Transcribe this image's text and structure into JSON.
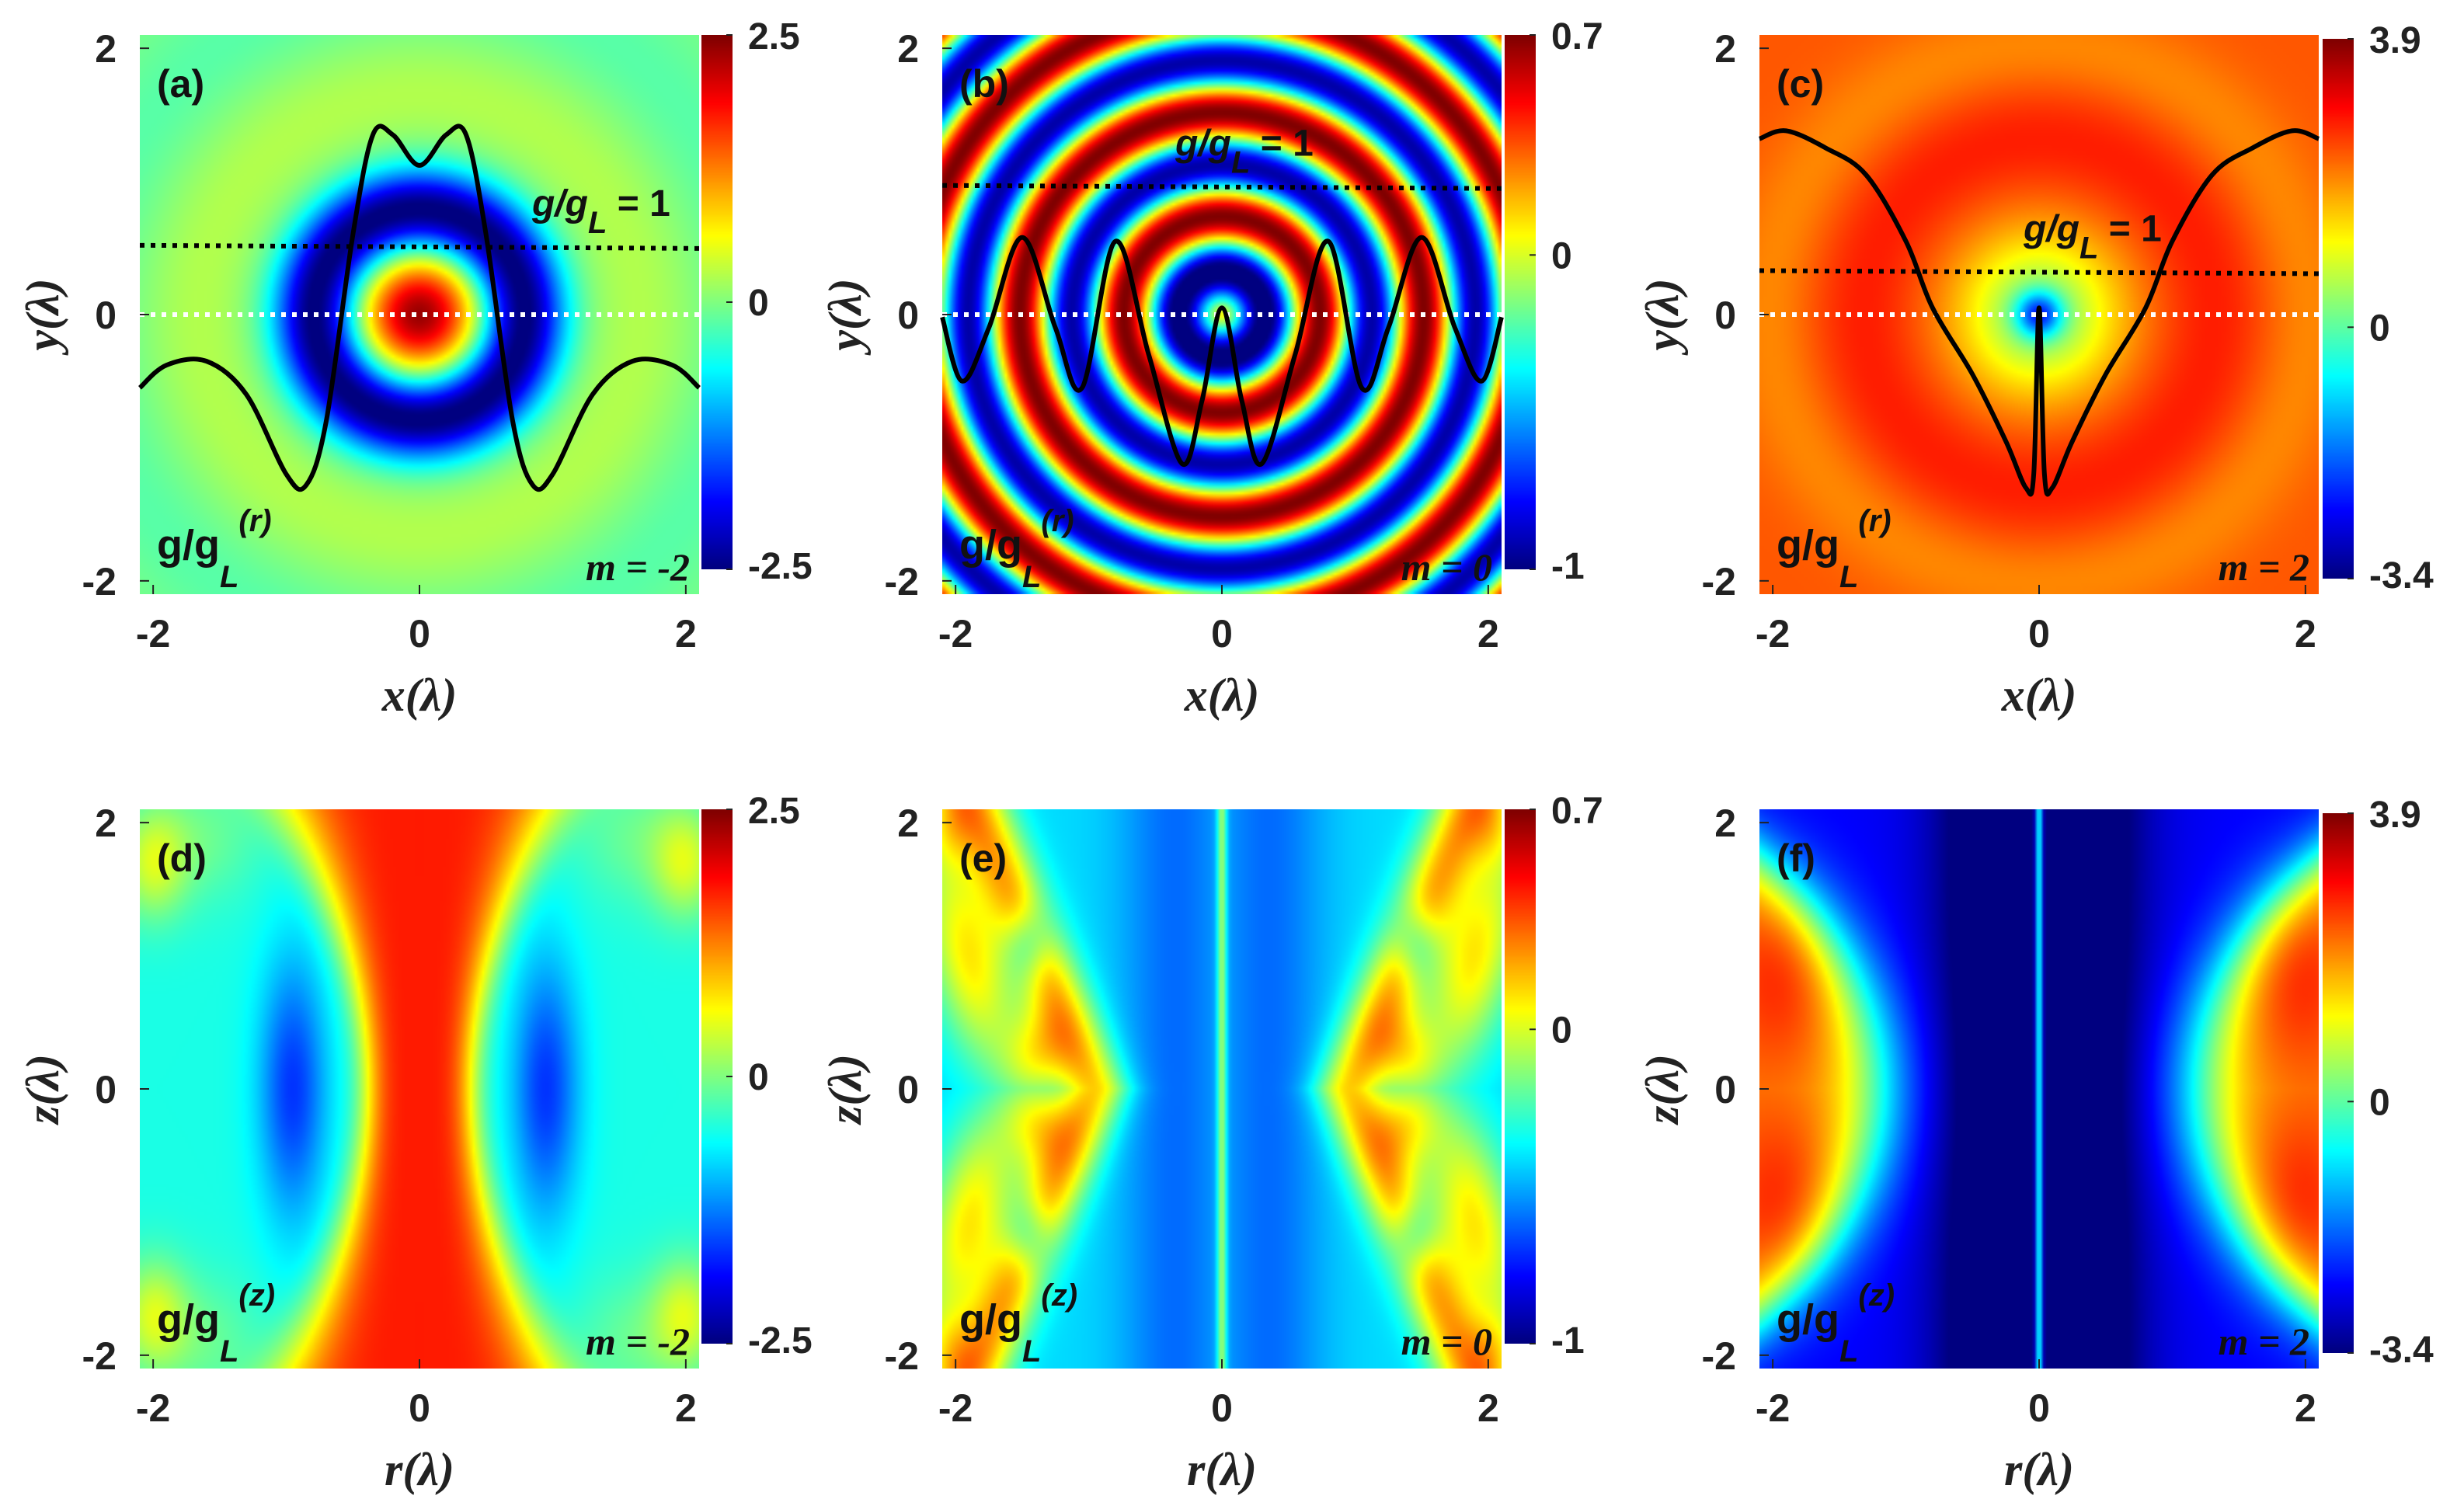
{
  "chart_data": [
    {
      "type": "heatmap",
      "panel": "(a)",
      "xlabel": "x(λ)",
      "ylabel": "y(λ)",
      "xlim": [
        -2.1,
        2.1
      ],
      "ylim": [
        -2.1,
        2.1
      ],
      "xticks": [
        "-2",
        "0",
        "2"
      ],
      "yticks": [
        "-2",
        "0",
        "2"
      ],
      "colorbar": {
        "min": -2.5,
        "max": 2.5,
        "ticks": [
          "2.5",
          "0",
          "-2.5"
        ]
      },
      "quantity_label": {
        "base": "g/g",
        "sub": "L",
        "sup": "(r)"
      },
      "m_label": "m = -2",
      "annotation": {
        "base": "g/g",
        "sub": "L",
        "rest": " = 1"
      },
      "black_dotted_y": 0.52,
      "white_dotted_y": 0,
      "profile_curve": {
        "x": [
          -2.1,
          -1.9,
          -1.6,
          -1.3,
          -1.0,
          -0.85,
          -0.7,
          -0.5,
          -0.35,
          -0.2,
          0,
          0.2,
          0.35,
          0.5,
          0.7,
          0.85,
          1.0,
          1.3,
          1.6,
          1.9,
          2.1
        ],
        "y": [
          -0.55,
          -0.38,
          -0.35,
          -0.6,
          -1.2,
          -1.28,
          -0.8,
          0.6,
          1.35,
          1.35,
          1.12,
          1.35,
          1.35,
          0.6,
          -0.8,
          -1.28,
          -1.2,
          -0.6,
          -0.35,
          -0.38,
          -0.55
        ]
      }
    },
    {
      "type": "heatmap",
      "panel": "(b)",
      "xlabel": "x(λ)",
      "ylabel": "y(λ)",
      "xlim": [
        -2.1,
        2.1
      ],
      "ylim": [
        -2.1,
        2.1
      ],
      "xticks": [
        "-2",
        "0",
        "2"
      ],
      "yticks": [
        "-2",
        "0",
        "2"
      ],
      "colorbar": {
        "min": -1,
        "max": 0.7,
        "ticks": [
          "0.7",
          "0",
          "-1"
        ]
      },
      "quantity_label": {
        "base": "g/g",
        "sub": "L",
        "sup": "(r)"
      },
      "m_label": "m = 0",
      "annotation": {
        "base": "g/g",
        "sub": "L",
        "rest": " = 1"
      },
      "black_dotted_y": 0.97,
      "white_dotted_y": 0,
      "profile_curve": {
        "x": [
          -2.1,
          -1.95,
          -1.75,
          -1.5,
          -1.25,
          -1.05,
          -0.8,
          -0.55,
          -0.3,
          -0.15,
          0,
          0.15,
          0.3,
          0.55,
          0.8,
          1.05,
          1.25,
          1.5,
          1.75,
          1.95,
          2.1
        ],
        "y": [
          -0.02,
          -0.5,
          -0.1,
          0.58,
          -0.1,
          -0.55,
          0.55,
          -0.3,
          -1.12,
          -0.65,
          0.05,
          -0.65,
          -1.12,
          -0.3,
          0.55,
          -0.55,
          -0.1,
          0.58,
          -0.1,
          -0.5,
          -0.02
        ]
      }
    },
    {
      "type": "heatmap",
      "panel": "(c)",
      "xlabel": "x(λ)",
      "ylabel": "y(λ)",
      "xlim": [
        -2.1,
        2.1
      ],
      "ylim": [
        -2.1,
        2.1
      ],
      "xticks": [
        "-2",
        "0",
        "2"
      ],
      "yticks": [
        "-2",
        "0",
        "2"
      ],
      "colorbar": {
        "min": -3.4,
        "max": 3.9,
        "ticks": [
          "3.9",
          "0",
          "-3.4"
        ]
      },
      "quantity_label": {
        "base": "g/g",
        "sub": "L",
        "sup": "(r)"
      },
      "m_label": "m = 2",
      "annotation": {
        "base": "g/g",
        "sub": "L",
        "rest": " = 1"
      },
      "black_dotted_y": 0.33,
      "white_dotted_y": 0,
      "profile_curve": {
        "x": [
          -2.1,
          -1.9,
          -1.6,
          -1.3,
          -1.0,
          -0.8,
          -0.5,
          -0.25,
          -0.1,
          -0.04,
          0,
          0.04,
          0.1,
          0.25,
          0.5,
          0.8,
          1.0,
          1.3,
          1.6,
          1.9,
          2.1
        ],
        "y": [
          1.32,
          1.38,
          1.25,
          1.05,
          0.55,
          0.05,
          -0.45,
          -0.95,
          -1.3,
          -1.2,
          0.05,
          -1.2,
          -1.3,
          -0.95,
          -0.45,
          0.05,
          0.55,
          1.05,
          1.25,
          1.38,
          1.32
        ]
      }
    },
    {
      "type": "heatmap",
      "panel": "(d)",
      "xlabel": "r(λ)",
      "ylabel": "z(λ)",
      "xlim": [
        -2.1,
        2.1
      ],
      "ylim": [
        -2.1,
        2.1
      ],
      "xticks": [
        "-2",
        "0",
        "2"
      ],
      "yticks": [
        "-2",
        "0",
        "2"
      ],
      "colorbar": {
        "min": -2.5,
        "max": 2.5,
        "ticks": [
          "2.5",
          "0",
          "-2.5"
        ]
      },
      "quantity_label": {
        "base": "g/g",
        "sub": "L",
        "sup": "(z)"
      },
      "m_label": "m = -2"
    },
    {
      "type": "heatmap",
      "panel": "(e)",
      "xlabel": "r(λ)",
      "ylabel": "z(λ)",
      "xlim": [
        -2.1,
        2.1
      ],
      "ylim": [
        -2.1,
        2.1
      ],
      "xticks": [
        "-2",
        "0",
        "2"
      ],
      "yticks": [
        "-2",
        "0",
        "2"
      ],
      "colorbar": {
        "min": -1,
        "max": 0.7,
        "ticks": [
          "0.7",
          "0",
          "-1"
        ]
      },
      "quantity_label": {
        "base": "g/g",
        "sub": "L",
        "sup": "(z)"
      },
      "m_label": "m = 0"
    },
    {
      "type": "heatmap",
      "panel": "(f)",
      "xlabel": "r(λ)",
      "ylabel": "z(λ)",
      "xlim": [
        -2.1,
        2.1
      ],
      "ylim": [
        -2.1,
        2.1
      ],
      "xticks": [
        "-2",
        "0",
        "2"
      ],
      "yticks": [
        "-2",
        "0",
        "2"
      ],
      "colorbar": {
        "min": -3.4,
        "max": 3.9,
        "ticks": [
          "3.9",
          "0",
          "-3.4"
        ]
      },
      "quantity_label": {
        "base": "g/g",
        "sub": "L",
        "sup": "(z)"
      },
      "m_label": "m = 2"
    }
  ]
}
